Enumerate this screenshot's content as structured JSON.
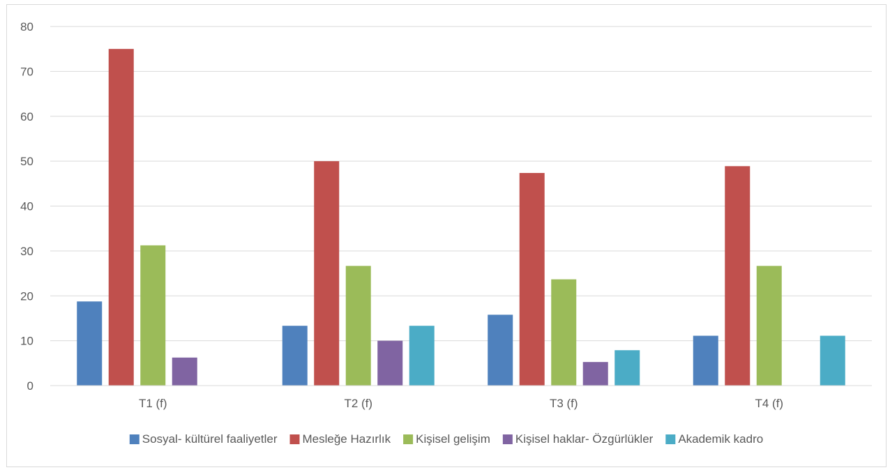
{
  "chart_data": {
    "type": "bar",
    "title": "",
    "xlabel": "",
    "ylabel": "",
    "ylim": [
      0,
      80
    ],
    "yticks": [
      0,
      10,
      20,
      30,
      40,
      50,
      60,
      70,
      80
    ],
    "grid": true,
    "legend_position": "bottom",
    "categories": [
      "T1 (f)",
      "T2 (f)",
      "T3 (f)",
      "T4 (f)"
    ],
    "series": [
      {
        "name": "Sosyal- kültürel faaliyetler",
        "color": "#4f81bd",
        "values": [
          18.75,
          13.33,
          15.79,
          11.11
        ]
      },
      {
        "name": "Mesleğe Hazırlık",
        "color": "#c0504d",
        "values": [
          75,
          50,
          47.37,
          48.89
        ]
      },
      {
        "name": "Kişisel gelişim",
        "color": "#9bbb59",
        "values": [
          31.25,
          26.67,
          23.68,
          26.67
        ]
      },
      {
        "name": "Kişisel haklar- Özgürlükler",
        "color": "#8064a2",
        "values": [
          6.25,
          10,
          5.26,
          0
        ]
      },
      {
        "name": "Akademik kadro",
        "color": "#4bacc6",
        "values": [
          0,
          13.33,
          7.89,
          11.11
        ]
      }
    ]
  }
}
